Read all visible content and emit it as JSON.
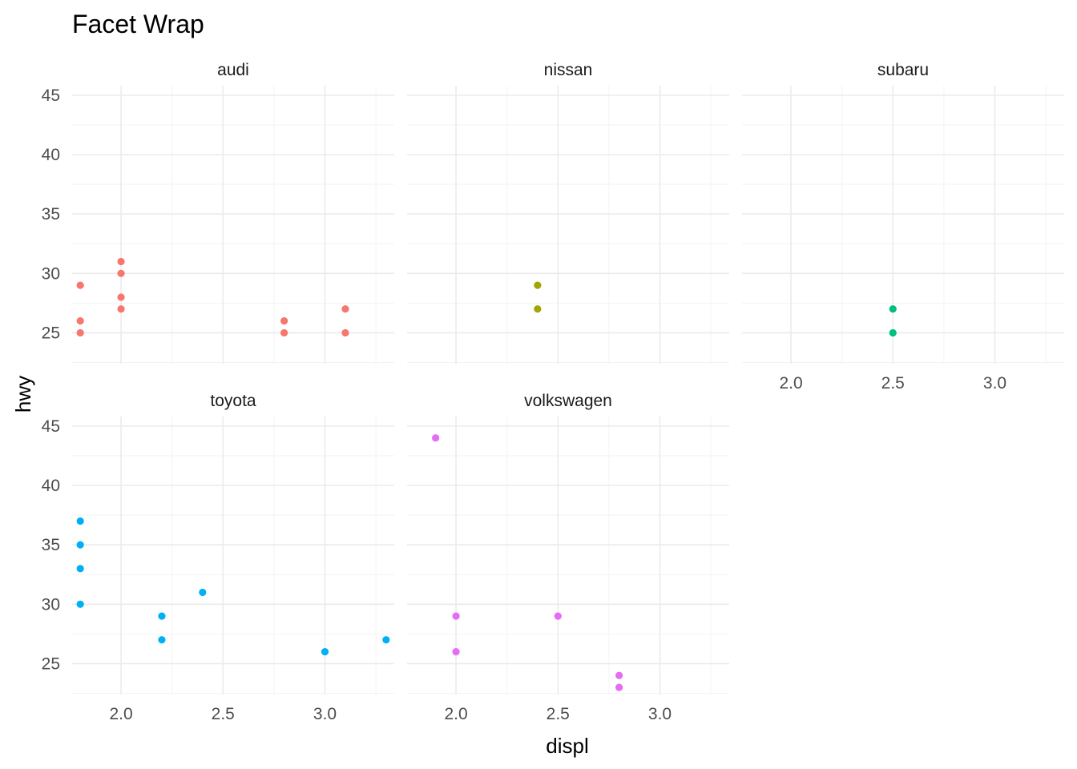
{
  "chart_data": {
    "type": "scatter",
    "title": "Facet Wrap",
    "xlabel": "displ",
    "ylabel": "hwy",
    "xlim": [
      1.76,
      3.34
    ],
    "ylim": [
      22.4,
      45.8
    ],
    "x_ticks": [
      2.0,
      2.5,
      3.0
    ],
    "y_ticks": [
      25,
      30,
      35,
      40,
      45
    ],
    "x_tick_labels": [
      "2.0",
      "2.5",
      "3.0"
    ],
    "y_tick_labels": [
      "25",
      "30",
      "35",
      "40",
      "45"
    ],
    "grid": true,
    "legend": "none",
    "facets": [
      {
        "label": "audi",
        "color": "#F8766D",
        "points": [
          [
            1.8,
            29
          ],
          [
            1.8,
            26
          ],
          [
            1.8,
            25
          ],
          [
            2.0,
            31
          ],
          [
            2.0,
            30
          ],
          [
            2.0,
            28
          ],
          [
            2.0,
            27
          ],
          [
            2.8,
            26
          ],
          [
            2.8,
            25
          ],
          [
            3.1,
            27
          ],
          [
            3.1,
            25
          ]
        ]
      },
      {
        "label": "nissan",
        "color": "#A3A500",
        "points": [
          [
            2.4,
            29
          ],
          [
            2.4,
            27
          ]
        ]
      },
      {
        "label": "subaru",
        "color": "#00BF7D",
        "points": [
          [
            2.5,
            27
          ],
          [
            2.5,
            25
          ]
        ]
      },
      {
        "label": "toyota",
        "color": "#00B0F6",
        "points": [
          [
            1.8,
            37
          ],
          [
            1.8,
            35
          ],
          [
            1.8,
            33
          ],
          [
            1.8,
            30
          ],
          [
            2.2,
            29
          ],
          [
            2.2,
            27
          ],
          [
            2.4,
            31
          ],
          [
            3.0,
            26
          ],
          [
            3.3,
            27
          ]
        ]
      },
      {
        "label": "volkswagen",
        "color": "#E76BF3",
        "points": [
          [
            1.9,
            44
          ],
          [
            2.0,
            29
          ],
          [
            2.0,
            26
          ],
          [
            2.5,
            29
          ],
          [
            2.8,
            24
          ],
          [
            2.8,
            23
          ]
        ]
      }
    ]
  }
}
